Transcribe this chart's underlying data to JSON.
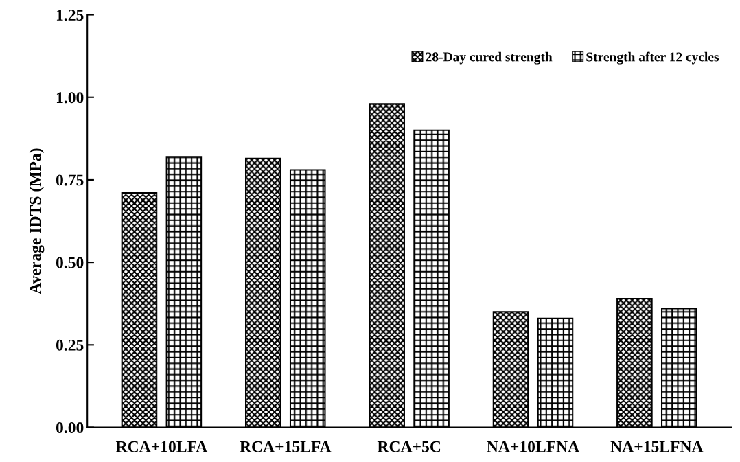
{
  "chart_data": {
    "type": "bar",
    "ylabel": "Average IDTS (MPa)",
    "categories": [
      "RCA+10LFA",
      "RCA+15LFA",
      "RCA+5C",
      "NA+10LFNA",
      "NA+15LFNA"
    ],
    "series": [
      {
        "name": "28-Day cured strength",
        "color": "#000000",
        "values": [
          0.71,
          0.815,
          0.98,
          0.35,
          0.39
        ]
      },
      {
        "name": "Strength after 12 cycles",
        "color": "#000000",
        "values": [
          0.82,
          0.78,
          0.9,
          0.33,
          0.36
        ]
      }
    ],
    "ylim": [
      0,
      1.25
    ],
    "yticks": [
      {
        "value": 0,
        "label": "0.00"
      },
      {
        "value": 0.25,
        "label": "0.25"
      },
      {
        "value": 0.5,
        "label": "0.50"
      },
      {
        "value": 0.75,
        "label": "0.75"
      },
      {
        "value": 1.0,
        "label": "1.00"
      },
      {
        "value": 1.25,
        "label": "1.25"
      }
    ],
    "grid": false,
    "legend": "top right"
  }
}
